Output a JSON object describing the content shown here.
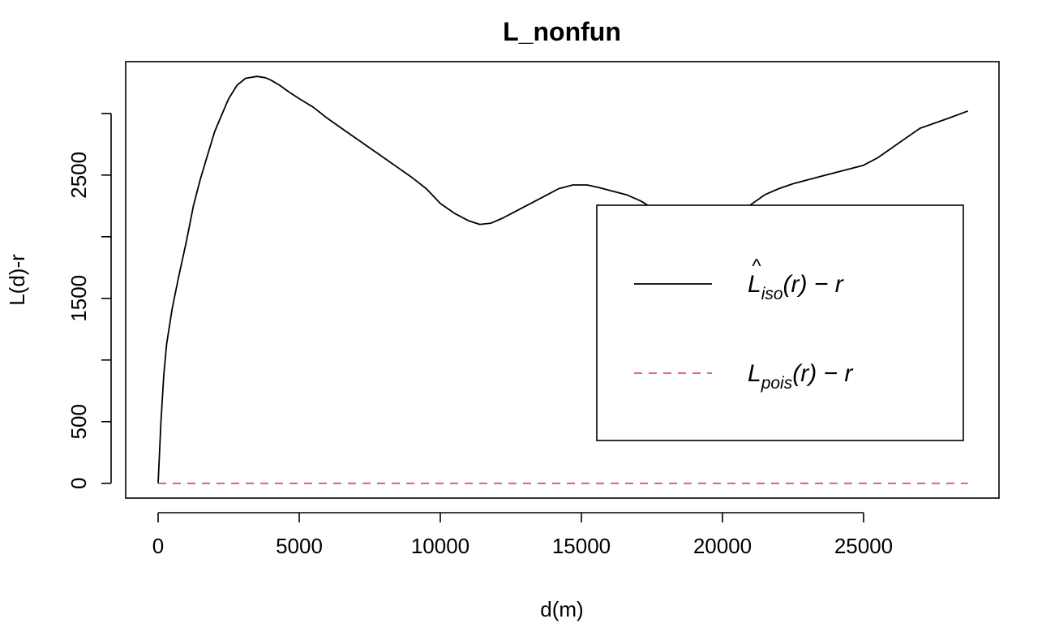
{
  "chart_data": {
    "type": "line",
    "title": "L_nonfun",
    "xlabel": "d(m)",
    "ylabel": "L(d)-r",
    "xlim": [
      -1150,
      29800
    ],
    "ylim": [
      -120,
      3420
    ],
    "x_ticks": [
      0,
      5000,
      10000,
      15000,
      20000,
      25000
    ],
    "x_tick_labels": [
      "0",
      "5000",
      "10000",
      "15000",
      "20000",
      "25000"
    ],
    "y_ticks": [
      0,
      500,
      1000,
      1500,
      2000,
      2500,
      3000
    ],
    "y_tick_labels": [
      "0",
      "500",
      "",
      "1500",
      "",
      "2500",
      ""
    ],
    "grid": false,
    "legend_placement": "right",
    "series": [
      {
        "name": "L̂iso(r) − r",
        "legend_main": "L",
        "legend_sub": "iso",
        "legend_hat": "^",
        "legend_tail": "(r) − r",
        "color": "#000000",
        "dash": "solid",
        "points": [
          [
            0,
            0
          ],
          [
            100,
            500
          ],
          [
            200,
            880
          ],
          [
            300,
            1130
          ],
          [
            500,
            1420
          ],
          [
            750,
            1700
          ],
          [
            1000,
            1960
          ],
          [
            1250,
            2250
          ],
          [
            1500,
            2470
          ],
          [
            1800,
            2700
          ],
          [
            2000,
            2850
          ],
          [
            2200,
            2960
          ],
          [
            2500,
            3120
          ],
          [
            2800,
            3230
          ],
          [
            3100,
            3285
          ],
          [
            3500,
            3300
          ],
          [
            3800,
            3290
          ],
          [
            4000,
            3270
          ],
          [
            4300,
            3230
          ],
          [
            4600,
            3180
          ],
          [
            5000,
            3120
          ],
          [
            5500,
            3050
          ],
          [
            6000,
            2960
          ],
          [
            6500,
            2880
          ],
          [
            7000,
            2800
          ],
          [
            7500,
            2720
          ],
          [
            8000,
            2640
          ],
          [
            8500,
            2560
          ],
          [
            9000,
            2480
          ],
          [
            9500,
            2390
          ],
          [
            10000,
            2270
          ],
          [
            10500,
            2190
          ],
          [
            11000,
            2130
          ],
          [
            11400,
            2100
          ],
          [
            11800,
            2110
          ],
          [
            12200,
            2150
          ],
          [
            12700,
            2210
          ],
          [
            13200,
            2270
          ],
          [
            13700,
            2330
          ],
          [
            14200,
            2390
          ],
          [
            14700,
            2420
          ],
          [
            15200,
            2420
          ],
          [
            15600,
            2400
          ],
          [
            16100,
            2370
          ],
          [
            16600,
            2340
          ],
          [
            17100,
            2290
          ],
          [
            17600,
            2220
          ],
          [
            18100,
            2130
          ],
          [
            18500,
            2100
          ],
          [
            19000,
            2100
          ],
          [
            19500,
            2110
          ],
          [
            20000,
            2140
          ],
          [
            20500,
            2180
          ],
          [
            21000,
            2260
          ],
          [
            21500,
            2340
          ],
          [
            22000,
            2390
          ],
          [
            22500,
            2430
          ],
          [
            23000,
            2460
          ],
          [
            23500,
            2490
          ],
          [
            24000,
            2520
          ],
          [
            24500,
            2550
          ],
          [
            25000,
            2580
          ],
          [
            25500,
            2640
          ],
          [
            26000,
            2720
          ],
          [
            26500,
            2800
          ],
          [
            27000,
            2880
          ],
          [
            27500,
            2920
          ],
          [
            28000,
            2960
          ],
          [
            28700,
            3020
          ]
        ]
      },
      {
        "name": "Lpois(r) − r",
        "legend_main": "L",
        "legend_sub": "pois",
        "legend_tail": "(r) − r",
        "color": "#DF536B",
        "dash": "dashed",
        "points": [
          [
            0,
            0
          ],
          [
            28700,
            0
          ]
        ]
      }
    ]
  }
}
